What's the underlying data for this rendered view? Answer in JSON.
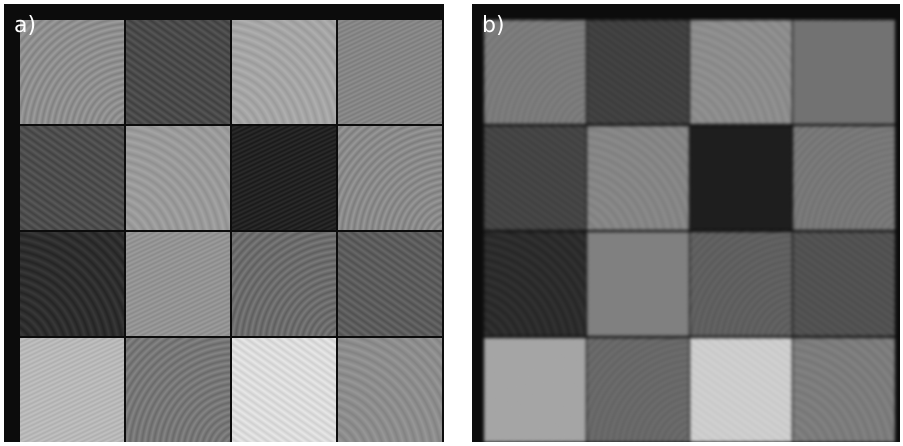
{
  "panels": [
    {
      "label": "a)",
      "tiles": [
        [
          "#8e8e8e",
          "#4a4a4a",
          "#a5a5a5",
          "#858585"
        ],
        [
          "#4d4d4d",
          "#9a9a9a",
          "#222222",
          "#8a8a8a"
        ],
        [
          "#2e2e2e",
          "#939393",
          "#6c6c6c",
          "#5c5c5c"
        ],
        [
          "#b8b8b8",
          "#777777",
          "#dcdcdc",
          "#8d8d8d"
        ]
      ]
    },
    {
      "label": "b)",
      "tiles": [
        [
          "#7a7a7a",
          "#404040",
          "#8c8c8c",
          "#727272"
        ],
        [
          "#444444",
          "#858585",
          "#1e1e1e",
          "#777777"
        ],
        [
          "#2c2c2c",
          "#808080",
          "#5f5f5f",
          "#515151"
        ],
        [
          "#a5a5a5",
          "#686868",
          "#cdcdcd",
          "#7c7c7c"
        ]
      ]
    }
  ]
}
